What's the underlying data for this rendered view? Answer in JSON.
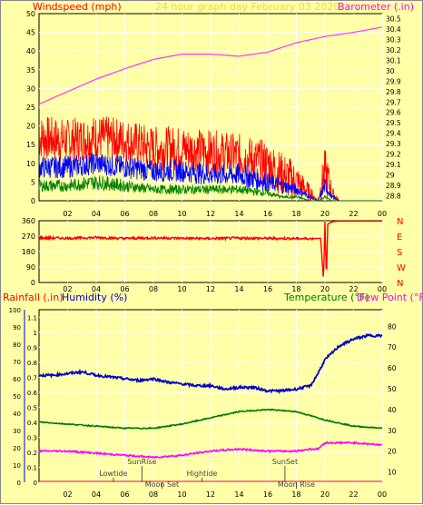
{
  "header": {
    "left_title": "Windspeed (mph)",
    "center_title": "24 hour graph day   February 03 2020",
    "right_title": "Barometer (.in)"
  },
  "colors": {
    "background": "#ffffa8",
    "plot_bg": "#ffffa8",
    "grid": "#ffffff",
    "wind_gust": "#ff0000",
    "wind_avg": "#0000ff",
    "wind_low": "#008000",
    "barometer": "#ff33ff",
    "direction": "#ff0000",
    "humidity": "#0000cc",
    "temperature": "#007700",
    "dewpoint": "#ff00ff",
    "rain": "#ff0000"
  },
  "x_tick_labels": [
    "02",
    "04",
    "06",
    "08",
    "10",
    "12",
    "14",
    "16",
    "18",
    "20",
    "22",
    "00"
  ],
  "panel1": {
    "left_axis_ticks": [
      "0",
      "5",
      "10",
      "15",
      "20",
      "25",
      "30",
      "35",
      "40",
      "45",
      "50"
    ],
    "right_axis_ticks": [
      "28.8",
      "28.9",
      "29",
      "29.1",
      "29.2",
      "29.3",
      "29.4",
      "29.5",
      "29.6",
      "29.7",
      "29.8",
      "29.9",
      "30",
      "30.1",
      "30.2",
      "30.3",
      "30.4",
      "30.5"
    ]
  },
  "panel2": {
    "left_axis_ticks": [
      "0",
      "90",
      "180",
      "270",
      "360"
    ],
    "compass": [
      "N",
      "W",
      "S",
      "E",
      "N"
    ]
  },
  "panel3": {
    "rain_label": "Rainfall (.in)",
    "humidity_label": "Humidity (%)",
    "temp_label": "Temperature (°F)",
    "dew_label": "Dew Point (°F)",
    "rain_ticks": [
      "0",
      "0.1",
      "0.2",
      "0.3",
      "0.4",
      "0.5",
      "0.6",
      "0.7",
      "0.8",
      "0.9",
      "1",
      "1.1"
    ],
    "humidity_ticks": [
      "0",
      "10",
      "20",
      "30",
      "40",
      "50",
      "60",
      "70",
      "80",
      "90",
      "100"
    ],
    "temp_ticks": [
      "10",
      "20",
      "30",
      "40",
      "50",
      "60",
      "70",
      "80"
    ],
    "events": [
      {
        "label": "SunRise",
        "hour": 7.2,
        "row": 0
      },
      {
        "label": "Lowtide",
        "hour": 5.2,
        "row": 1
      },
      {
        "label": "Moon Set",
        "hour": 8.6,
        "row": 2
      },
      {
        "label": "Hightide",
        "hour": 11.4,
        "row": 1
      },
      {
        "label": "SunSet",
        "hour": 17.2,
        "row": 0
      },
      {
        "label": "Moon Rise",
        "hour": 18.0,
        "row": 2
      }
    ]
  },
  "chart_data": [
    {
      "type": "line",
      "title": "24 hour graph day   February 03 2020",
      "x_unit": "hour of day (0-24)",
      "ylabel": "Windspeed (mph)",
      "ylim": [
        0,
        50
      ],
      "y2label": "Barometer (.in)",
      "y2lim": [
        28.75,
        30.55
      ],
      "series": [
        {
          "key": "gust",
          "x": [
            0,
            2,
            4,
            6,
            8,
            10,
            12,
            14,
            16,
            17,
            18,
            19,
            19.5,
            20,
            20.5,
            21,
            22,
            24
          ],
          "values": [
            17,
            16,
            17,
            16,
            14,
            14,
            13,
            12,
            10,
            7,
            5,
            2,
            0,
            8,
            2,
            0,
            0,
            0
          ]
        },
        {
          "key": "avg",
          "x": [
            0,
            2,
            4,
            6,
            8,
            10,
            12,
            14,
            16,
            17,
            18,
            19,
            19.5,
            20,
            20.5,
            21,
            22,
            24
          ],
          "values": [
            9,
            9,
            10,
            9,
            8,
            8,
            7,
            7,
            5,
            4,
            3,
            1,
            0,
            4,
            1,
            0,
            0,
            0
          ]
        },
        {
          "key": "low",
          "x": [
            0,
            2,
            4,
            6,
            8,
            10,
            12,
            14,
            16,
            17,
            18,
            19,
            19.5,
            20,
            20.5,
            21,
            22,
            24
          ],
          "values": [
            4,
            4,
            5,
            4,
            3,
            3,
            3,
            3,
            2,
            1,
            1,
            0,
            0,
            1,
            0,
            0,
            0,
            0
          ]
        },
        {
          "key": "barometer",
          "axis": "y2",
          "x": [
            0,
            2,
            4,
            6,
            8,
            10,
            12,
            14,
            16,
            18,
            20,
            22,
            24
          ],
          "values": [
            29.68,
            29.8,
            29.92,
            30.02,
            30.11,
            30.16,
            30.16,
            30.14,
            30.18,
            30.27,
            30.33,
            30.37,
            30.42
          ]
        }
      ]
    },
    {
      "type": "line",
      "x_unit": "hour of day (0-24)",
      "ylabel": "Wind direction (degrees)",
      "ylim": [
        0,
        360
      ],
      "series": [
        {
          "key": "direction",
          "x": [
            0,
            2,
            4,
            6,
            8,
            10,
            12,
            14,
            16,
            18,
            19.2,
            19.7,
            19.9,
            20.0,
            20.1,
            20.2,
            20.4,
            20.6,
            21,
            22,
            24
          ],
          "values": [
            260,
            258,
            262,
            257,
            260,
            258,
            256,
            259,
            257,
            256,
            255,
            258,
            10,
            355,
            15,
            340,
            350,
            355,
            358,
            358,
            358
          ]
        }
      ]
    },
    {
      "type": "line",
      "x_unit": "hour of day (0-24)",
      "ylabel": "Humidity (%)",
      "ylim": [
        0,
        100
      ],
      "y2label": "Temperature (°F)",
      "y2lim": [
        5,
        88
      ],
      "series": [
        {
          "key": "humidity",
          "x": [
            0,
            1,
            2,
            3,
            4,
            5,
            6,
            7,
            8,
            9,
            10,
            11,
            12,
            13,
            14,
            15,
            16,
            17,
            18,
            19,
            19.5,
            20,
            21,
            22,
            23,
            24
          ],
          "values": [
            62,
            62,
            63,
            64,
            62,
            61,
            60,
            59,
            60,
            58,
            57,
            56,
            56,
            54,
            55,
            55,
            53,
            53,
            54,
            56,
            63,
            71,
            79,
            83,
            85,
            85
          ]
        },
        {
          "key": "temperature",
          "axis": "y2",
          "x": [
            0,
            2,
            4,
            6,
            8,
            10,
            12,
            14,
            16,
            18,
            19,
            20,
            22,
            24
          ],
          "values": [
            34,
            33,
            32,
            31,
            31,
            33,
            36,
            39,
            40,
            39,
            37,
            35,
            32,
            31
          ]
        },
        {
          "key": "dewpoint",
          "axis": "y2",
          "x": [
            0,
            2,
            4,
            6,
            8,
            10,
            12,
            14,
            16,
            18,
            19,
            19.5,
            20,
            22,
            24
          ],
          "values": [
            20,
            20,
            19,
            18,
            17,
            18,
            20,
            21,
            20,
            20,
            21,
            21,
            24,
            24,
            23
          ]
        },
        {
          "key": "rain",
          "x": [
            0,
            24
          ],
          "values": [
            0,
            0
          ]
        }
      ]
    }
  ]
}
